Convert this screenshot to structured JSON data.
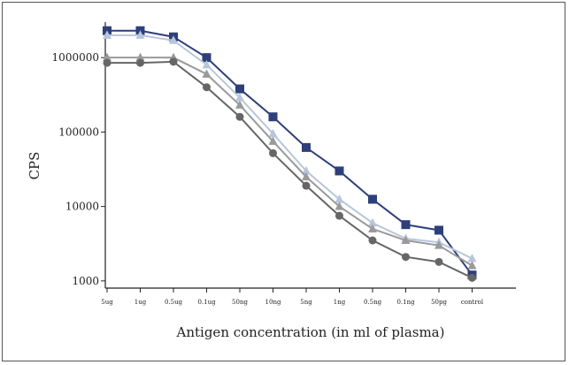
{
  "chart_data": {
    "type": "line",
    "title": "",
    "xlabel": "Antigen concentration (in ml of plasma)",
    "ylabel": "CPS",
    "y_scale": "log",
    "ylim": [
      800,
      3000000
    ],
    "y_ticks": [
      1000,
      10000,
      100000,
      1000000
    ],
    "y_tick_labels": [
      "1000",
      "10000",
      "100000",
      "1000000"
    ],
    "categories": [
      "5ug",
      "1ug",
      "0.5ug",
      "0.1ug",
      "50ng",
      "10ng",
      "5ng",
      "1ng",
      "0.5ng",
      "0.1ng",
      "50pg",
      "control"
    ],
    "grid": false,
    "legend": "none",
    "series": [
      {
        "values": [
          2300000,
          2300000,
          1900000,
          1000000,
          380000,
          160000,
          62000,
          30000,
          12500,
          5700,
          4800,
          1200
        ],
        "color": "#2e3f7a",
        "marker": "square"
      },
      {
        "values": [
          2000000,
          2000000,
          1700000,
          800000,
          290000,
          95000,
          30000,
          12500,
          6000,
          3700,
          3300,
          2000
        ],
        "color": "#b8c6dc",
        "marker": "triangle"
      },
      {
        "values": [
          1000000,
          1000000,
          1000000,
          600000,
          230000,
          75000,
          25000,
          10000,
          5000,
          3500,
          3000,
          1600
        ],
        "color": "#9a9a9a",
        "marker": "triangle"
      },
      {
        "values": [
          850000,
          850000,
          880000,
          400000,
          160000,
          52000,
          19000,
          7500,
          3500,
          2100,
          1800,
          1100
        ],
        "color": "#666666",
        "marker": "circle"
      }
    ]
  }
}
